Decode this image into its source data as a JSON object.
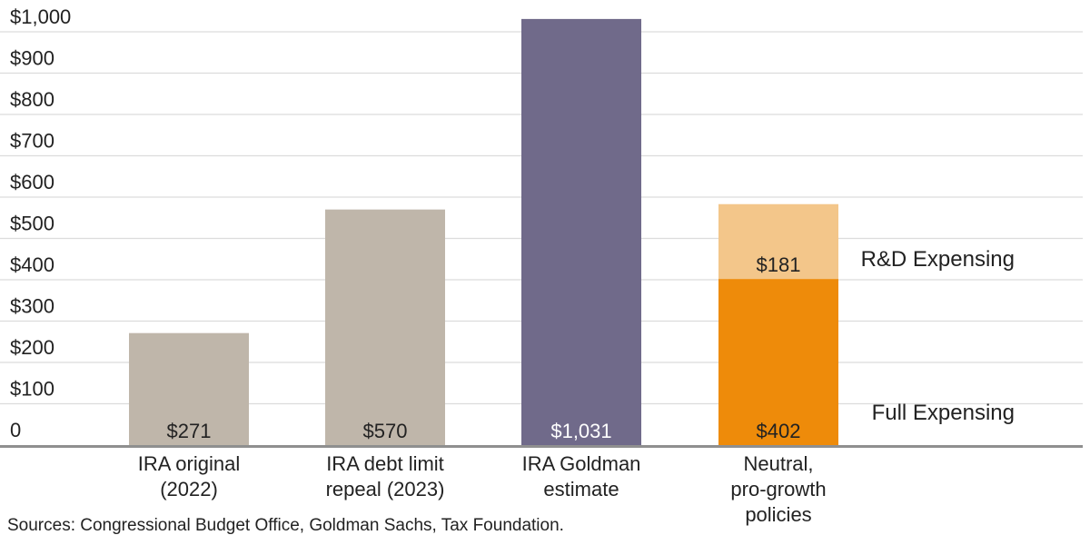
{
  "chart_data": {
    "type": "bar",
    "title": "",
    "xlabel": "",
    "ylabel": "",
    "ylim": [
      0,
      1000
    ],
    "y_tick_labels": [
      "0",
      "$100",
      "$200",
      "$300",
      "$400",
      "$500",
      "$600",
      "$700",
      "$800",
      "$900",
      "$1,000"
    ],
    "grid": true,
    "bars": [
      {
        "category_lines": [
          "IRA original",
          "(2022)"
        ],
        "value": 271,
        "label": "$271",
        "color": "#bfb6aa",
        "label_color": "#222222"
      },
      {
        "category_lines": [
          "IRA debt limit",
          "repeal (2023)"
        ],
        "value": 570,
        "label": "$570",
        "color": "#bfb6aa",
        "label_color": "#222222"
      },
      {
        "category_lines": [
          "IRA Goldman",
          "estimate"
        ],
        "value": 1031,
        "label": "$1,031",
        "color": "#706a8a",
        "label_color": "#ffffff"
      }
    ],
    "stacked_bar": {
      "category_lines": [
        "Neutral,",
        "pro-growth",
        "policies"
      ],
      "segments": [
        {
          "name": "Full Expensing",
          "value": 402,
          "label": "$402",
          "color": "#ee8b0a",
          "label_color": "#222222"
        },
        {
          "name": "R&D Expensing",
          "value": 181,
          "label": "$181",
          "color": "#f3c68a",
          "label_color": "#222222"
        }
      ]
    }
  },
  "source_note": "Sources: Congressional Budget Office, Goldman Sachs, Tax Foundation."
}
